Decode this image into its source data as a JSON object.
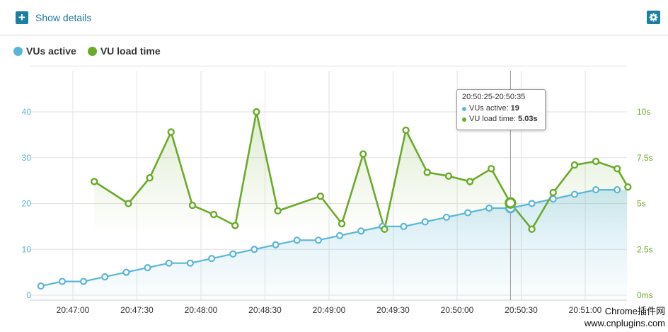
{
  "header": {
    "show_details_label": "Show details",
    "plus_icon": "plus-icon",
    "settings_icon": "gear-icon"
  },
  "chart_data": {
    "type": "line",
    "title": "",
    "xlabel": "",
    "ylabel_left": "",
    "ylabel_right": "",
    "x_ticks": [
      "20:47:00",
      "20:47:30",
      "20:48:00",
      "20:48:30",
      "20:49:00",
      "20:49:30",
      "20:50:00",
      "20:50:30",
      "20:51:00"
    ],
    "y_left_ticks": [
      "0",
      "10",
      "20",
      "30",
      "40"
    ],
    "y_left_range": [
      0,
      50
    ],
    "y_right_ticks": [
      "0ms",
      "2.5s",
      "5s",
      "7.5s",
      "10s"
    ],
    "y_right_range": [
      0,
      12.5
    ],
    "grid": true,
    "legend_position": "top-left",
    "series": [
      {
        "name": "VUs active",
        "color": "#5ab6d6",
        "axis": "left",
        "x": [
          "20:46:45",
          "20:46:55",
          "20:47:05",
          "20:47:15",
          "20:47:25",
          "20:47:35",
          "20:47:45",
          "20:47:55",
          "20:48:05",
          "20:48:15",
          "20:48:25",
          "20:48:35",
          "20:48:45",
          "20:48:55",
          "20:49:05",
          "20:49:15",
          "20:49:25",
          "20:49:35",
          "20:49:45",
          "20:49:55",
          "20:50:05",
          "20:50:15",
          "20:50:25",
          "20:50:35",
          "20:50:45",
          "20:50:55",
          "20:51:05",
          "20:51:15"
        ],
        "values": [
          2,
          3,
          3,
          4,
          5,
          6,
          7,
          7,
          8,
          9,
          10,
          11,
          12,
          12,
          13,
          14,
          15,
          15,
          16,
          17,
          18,
          19,
          19,
          20,
          21,
          22,
          23,
          23
        ]
      },
      {
        "name": "VU load time",
        "color": "#6aaa2a",
        "axis": "right",
        "x": [
          "20:47:10",
          "20:47:26",
          "20:47:36",
          "20:47:46",
          "20:47:56",
          "20:48:06",
          "20:48:16",
          "20:48:26",
          "20:48:36",
          "20:48:56",
          "20:49:06",
          "20:49:16",
          "20:49:26",
          "20:49:36",
          "20:49:46",
          "20:49:56",
          "20:50:06",
          "20:50:16",
          "20:50:25",
          "20:50:35",
          "20:50:45",
          "20:50:55",
          "20:51:05",
          "20:51:15",
          "20:51:20"
        ],
        "values": [
          6.2,
          5.0,
          6.4,
          8.9,
          4.9,
          4.4,
          3.8,
          10.0,
          4.6,
          5.4,
          3.9,
          7.7,
          3.6,
          9.0,
          6.7,
          6.5,
          6.2,
          6.9,
          5.03,
          3.6,
          5.6,
          7.1,
          7.3,
          6.9,
          5.9
        ]
      }
    ],
    "tooltip": {
      "title": "20:50:25-20:50:35",
      "rows": [
        {
          "label": "VUs active:",
          "value": "19",
          "color": "#5ab6d6"
        },
        {
          "label": "VU load time:",
          "value": "5.03s",
          "color": "#6aaa2a"
        }
      ],
      "hover_index_vus": 22,
      "hover_index_load": 18
    }
  },
  "watermark": {
    "line1": "Chrome插件网",
    "line2": "www.cnplugins.com"
  }
}
